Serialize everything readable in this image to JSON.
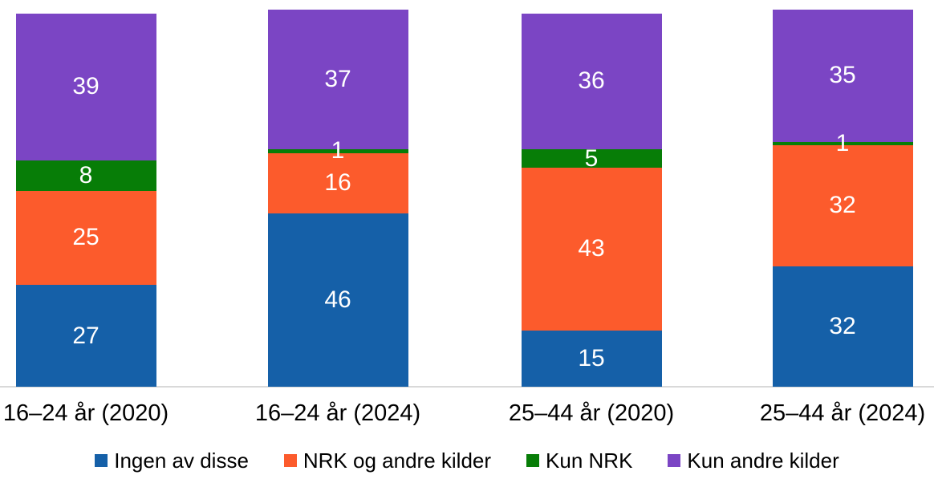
{
  "chart_data": {
    "type": "bar",
    "stacked": true,
    "title": "",
    "categories": [
      "16–24 år (2020)",
      "16–24 år (2024)",
      "25–44 år (2020)",
      "25–44 år (2024)"
    ],
    "series": [
      {
        "name": "Ingen av disse",
        "color": "#1560A8",
        "values": [
          27,
          46,
          15,
          32
        ]
      },
      {
        "name": "NRK og andre kilder",
        "color": "#FC5B2C",
        "values": [
          25,
          16,
          43,
          32
        ]
      },
      {
        "name": "Kun NRK",
        "color": "#077D07",
        "values": [
          8,
          1,
          5,
          1
        ]
      },
      {
        "name": "Kun andre kilder",
        "color": "#7B45C4",
        "values": [
          39,
          37,
          36,
          35
        ]
      }
    ],
    "ylim": [
      0,
      100
    ],
    "grid": false,
    "legend_position": "bottom",
    "value_labels_shown": true,
    "value_label_color": "#FFFFFF",
    "axis_line_color": "#D9D9D9",
    "category_label_color": "#000000"
  }
}
